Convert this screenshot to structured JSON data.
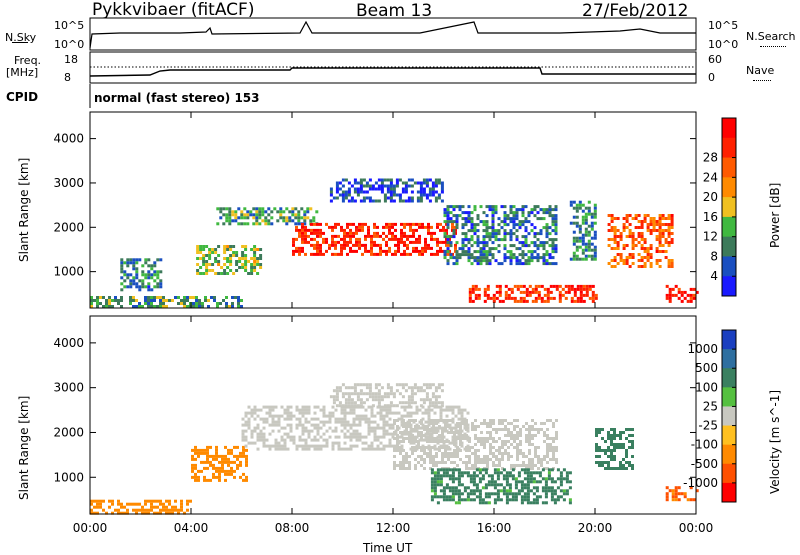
{
  "header": {
    "left_title": "Pykkvibaer (fitACF)",
    "center_title": "Beam 13",
    "right_title": "27/Feb/2012"
  },
  "panels": {
    "nsky": {
      "label": "N.Sky",
      "ticks_left": [
        "10^5",
        "10^0"
      ],
      "ticks_right": [
        "10^5",
        "10^0"
      ],
      "right_label": "N.Search"
    },
    "freq": {
      "label_line1": "Freq.",
      "label_line2": "[MHz]",
      "ticks_left": [
        "18",
        "8"
      ],
      "ticks_right": [
        "60",
        "0"
      ],
      "right_label": "Nave"
    },
    "cpid": {
      "label": "CPID",
      "text": "normal (fast stereo) 153"
    }
  },
  "chart_data": [
    {
      "type": "heatmap",
      "name": "power",
      "ylabel": "Slant Range [km]",
      "y_ticks": [
        1000,
        2000,
        3000,
        4000
      ],
      "ylim": [
        180,
        4600
      ],
      "x_ticks": [
        "00:00",
        "04:00",
        "08:00",
        "12:00",
        "16:00",
        "20:00",
        "00:00"
      ],
      "xlim_hours": [
        0,
        24
      ],
      "colorbar": {
        "label": "Power [dB]",
        "ticks": [
          "4",
          "8",
          "12",
          "16",
          "20",
          "24",
          "28"
        ],
        "colors": [
          "#1a1aff",
          "#1a4fc0",
          "#3c7a5a",
          "#40b840",
          "#f0c020",
          "#ff8a00",
          "#ff5a00",
          "#ff2000",
          "#ff0000"
        ]
      },
      "echo_regions": [
        {
          "t": [
            0.0,
            6.0
          ],
          "range": [
            200,
            450
          ],
          "value": 10
        },
        {
          "t": [
            1.2,
            2.8
          ],
          "range": [
            600,
            1300
          ],
          "value": 8
        },
        {
          "t": [
            4.2,
            6.7
          ],
          "range": [
            950,
            1600
          ],
          "value": 12
        },
        {
          "t": [
            5.0,
            9.0
          ],
          "range": [
            2050,
            2450
          ],
          "value": 10
        },
        {
          "t": [
            8.0,
            14.5
          ],
          "range": [
            1400,
            2100
          ],
          "value": 26
        },
        {
          "t": [
            9.5,
            14.0
          ],
          "range": [
            2600,
            3100
          ],
          "value": 5
        },
        {
          "t": [
            14.0,
            18.5
          ],
          "range": [
            1200,
            2500
          ],
          "value": 7
        },
        {
          "t": [
            15.0,
            20.0
          ],
          "range": [
            300,
            700
          ],
          "value": 25
        },
        {
          "t": [
            19.0,
            20.0
          ],
          "range": [
            1300,
            2600
          ],
          "value": 8
        },
        {
          "t": [
            20.5,
            23.0
          ],
          "range": [
            1100,
            2300
          ],
          "value": 22
        },
        {
          "t": [
            22.8,
            24.0
          ],
          "range": [
            350,
            700
          ],
          "value": 27
        }
      ]
    },
    {
      "type": "heatmap",
      "name": "velocity",
      "ylabel": "Slant Range [km]",
      "y_ticks": [
        1000,
        2000,
        3000,
        4000
      ],
      "ylim": [
        180,
        4600
      ],
      "x_ticks": [
        "00:00",
        "04:00",
        "08:00",
        "12:00",
        "16:00",
        "20:00",
        "00:00"
      ],
      "xlabel": "Time UT",
      "xlim_hours": [
        0,
        24
      ],
      "colorbar": {
        "label": "Velocity [m s^-1]",
        "ticks": [
          "1000",
          "500",
          "100",
          "25",
          "-25",
          "-100",
          "-500",
          "-1000"
        ],
        "colors": [
          "#1a3fc0",
          "#2e6fa0",
          "#3a8060",
          "#55c040",
          "#c8c8c0",
          "#ffc020",
          "#ff8a00",
          "#ff5000",
          "#ff0000"
        ]
      },
      "echo_regions": [
        {
          "t": [
            0.0,
            4.0
          ],
          "range": [
            200,
            500
          ],
          "value": -300
        },
        {
          "t": [
            4.0,
            6.2
          ],
          "range": [
            950,
            1700
          ],
          "value": -200
        },
        {
          "t": [
            6.0,
            15.0
          ],
          "range": [
            1600,
            2600
          ],
          "value": 0
        },
        {
          "t": [
            9.5,
            14.0
          ],
          "range": [
            2600,
            3100
          ],
          "value": 0
        },
        {
          "t": [
            12.0,
            18.5
          ],
          "range": [
            1200,
            2300
          ],
          "value": 0
        },
        {
          "t": [
            13.5,
            19.0
          ],
          "range": [
            400,
            1200
          ],
          "value": 150
        },
        {
          "t": [
            20.0,
            21.5
          ],
          "range": [
            1200,
            2100
          ],
          "value": 300
        },
        {
          "t": [
            22.8,
            24.0
          ],
          "range": [
            500,
            800
          ],
          "value": -600
        }
      ]
    }
  ]
}
